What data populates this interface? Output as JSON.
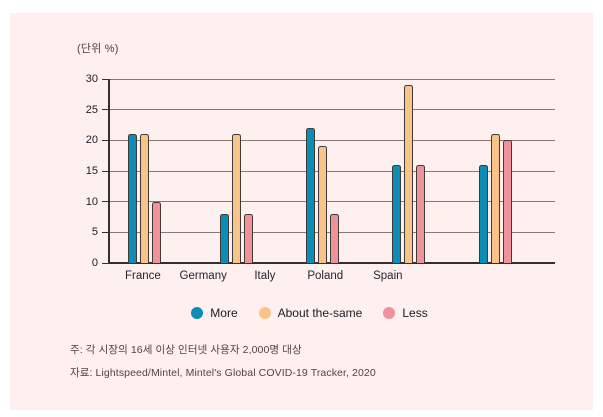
{
  "page": {
    "unit_label": "(단위 %)",
    "note_line1": "주: 각 시장의 16세 이상 인터넷 사용자 2,000명 대상",
    "note_line2": "자료: Lightspeed/Mintel, Mintel's Global COVID-19 Tracker, 2020"
  },
  "chart_data": {
    "type": "bar",
    "unit": "%",
    "title": "",
    "xlabel": "",
    "ylabel": "(단위 %)",
    "categories": [
      "France",
      "Germany",
      "Italy",
      "Poland",
      "Spain"
    ],
    "series": [
      {
        "name": "More",
        "color": "#0b8db6",
        "values": [
          21,
          8,
          22,
          16,
          16
        ]
      },
      {
        "name": "About the-same",
        "color": "#f8c48a",
        "values": [
          21,
          21,
          19,
          29,
          21
        ]
      },
      {
        "name": "Less",
        "color": "#f0929b",
        "values": [
          10,
          8,
          8,
          16,
          20
        ]
      }
    ],
    "ylim": [
      0,
      30
    ],
    "yticks": [
      30,
      25,
      20,
      15,
      10,
      5,
      0
    ],
    "grid": true,
    "legend_position": "bottom",
    "layout": {
      "group_centers_pct": [
        8.2,
        28.7,
        47.9,
        67.2,
        86.6
      ],
      "label_centers_pct": [
        7.8,
        21.3,
        35.1,
        48.6,
        62.6
      ]
    }
  }
}
